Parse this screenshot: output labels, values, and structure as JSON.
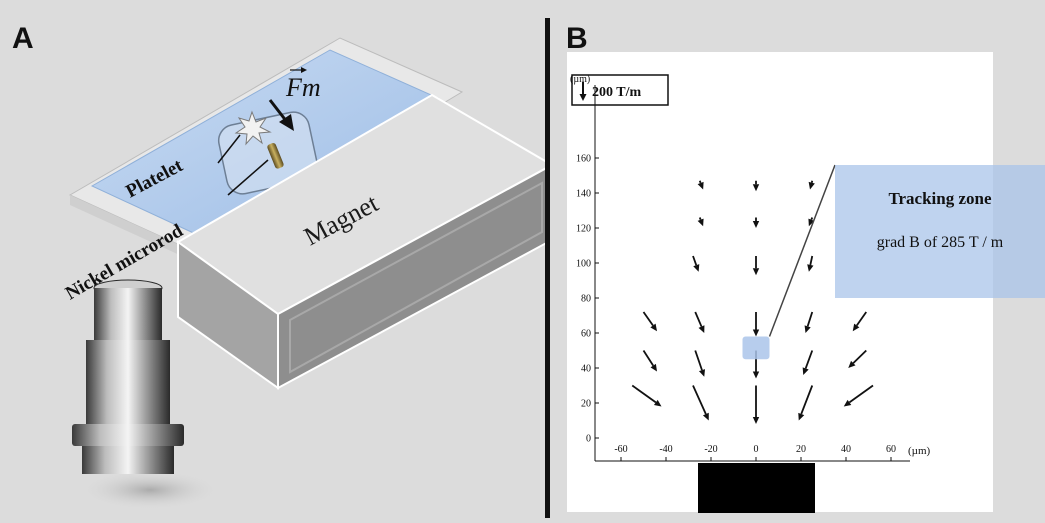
{
  "panel_a": {
    "letter": "A",
    "force_symbol": "Fm",
    "label_platelet": "Platelet",
    "label_nickel": "Nickel microrod",
    "label_magnet": "Magnet"
  },
  "panel_b": {
    "letter": "B",
    "scale_legend": "200 T/m",
    "y_unit": "(µm)",
    "x_unit": "(µm)",
    "tracking_title": "Tracking zone",
    "tracking_desc": "grad B of 285 T / m"
  },
  "chart_data": {
    "type": "vector-field",
    "xlim": [
      -60,
      60
    ],
    "ylim": [
      0,
      160
    ],
    "x_ticks": [
      -60,
      -40,
      -20,
      0,
      20,
      40,
      60
    ],
    "y_ticks": [
      0,
      20,
      40,
      60,
      80,
      100,
      120,
      140,
      160
    ],
    "vectors": [
      {
        "x": -25,
        "y": 147,
        "dx": 1.5,
        "dy": -5
      },
      {
        "x": 0,
        "y": 147,
        "dx": 0,
        "dy": -6
      },
      {
        "x": 25,
        "y": 147,
        "dx": -1,
        "dy": -5
      },
      {
        "x": -25,
        "y": 126,
        "dx": 1.5,
        "dy": -5
      },
      {
        "x": 0,
        "y": 126,
        "dx": 0,
        "dy": -6
      },
      {
        "x": 25,
        "y": 126,
        "dx": -1.5,
        "dy": -5
      },
      {
        "x": -28,
        "y": 104,
        "dx": 2.5,
        "dy": -9
      },
      {
        "x": 0,
        "y": 104,
        "dx": 0,
        "dy": -11
      },
      {
        "x": 25,
        "y": 104,
        "dx": -1.5,
        "dy": -9
      },
      {
        "x": -50,
        "y": 72,
        "dx": 6,
        "dy": -11
      },
      {
        "x": -27,
        "y": 72,
        "dx": 4,
        "dy": -12
      },
      {
        "x": 0,
        "y": 72,
        "dx": 0,
        "dy": -14
      },
      {
        "x": 25,
        "y": 72,
        "dx": -3,
        "dy": -12
      },
      {
        "x": 49,
        "y": 72,
        "dx": -6,
        "dy": -11
      },
      {
        "x": -50,
        "y": 50,
        "dx": 6,
        "dy": -12
      },
      {
        "x": -27,
        "y": 50,
        "dx": 4,
        "dy": -15
      },
      {
        "x": 0,
        "y": 50,
        "dx": 0,
        "dy": -16
      },
      {
        "x": 25,
        "y": 50,
        "dx": -4,
        "dy": -14
      },
      {
        "x": 49,
        "y": 50,
        "dx": -8,
        "dy": -10
      },
      {
        "x": -55,
        "y": 30,
        "dx": 13,
        "dy": -12
      },
      {
        "x": -28,
        "y": 30,
        "dx": 7,
        "dy": -20
      },
      {
        "x": 0,
        "y": 30,
        "dx": 0,
        "dy": -22
      },
      {
        "x": 25,
        "y": 30,
        "dx": -6,
        "dy": -20
      },
      {
        "x": 52,
        "y": 30,
        "dx": -13,
        "dy": -12
      }
    ],
    "tracking_zone": {
      "x": [
        -6,
        6
      ],
      "y": [
        45,
        58
      ]
    },
    "magnet_x": [
      -25,
      25
    ]
  }
}
